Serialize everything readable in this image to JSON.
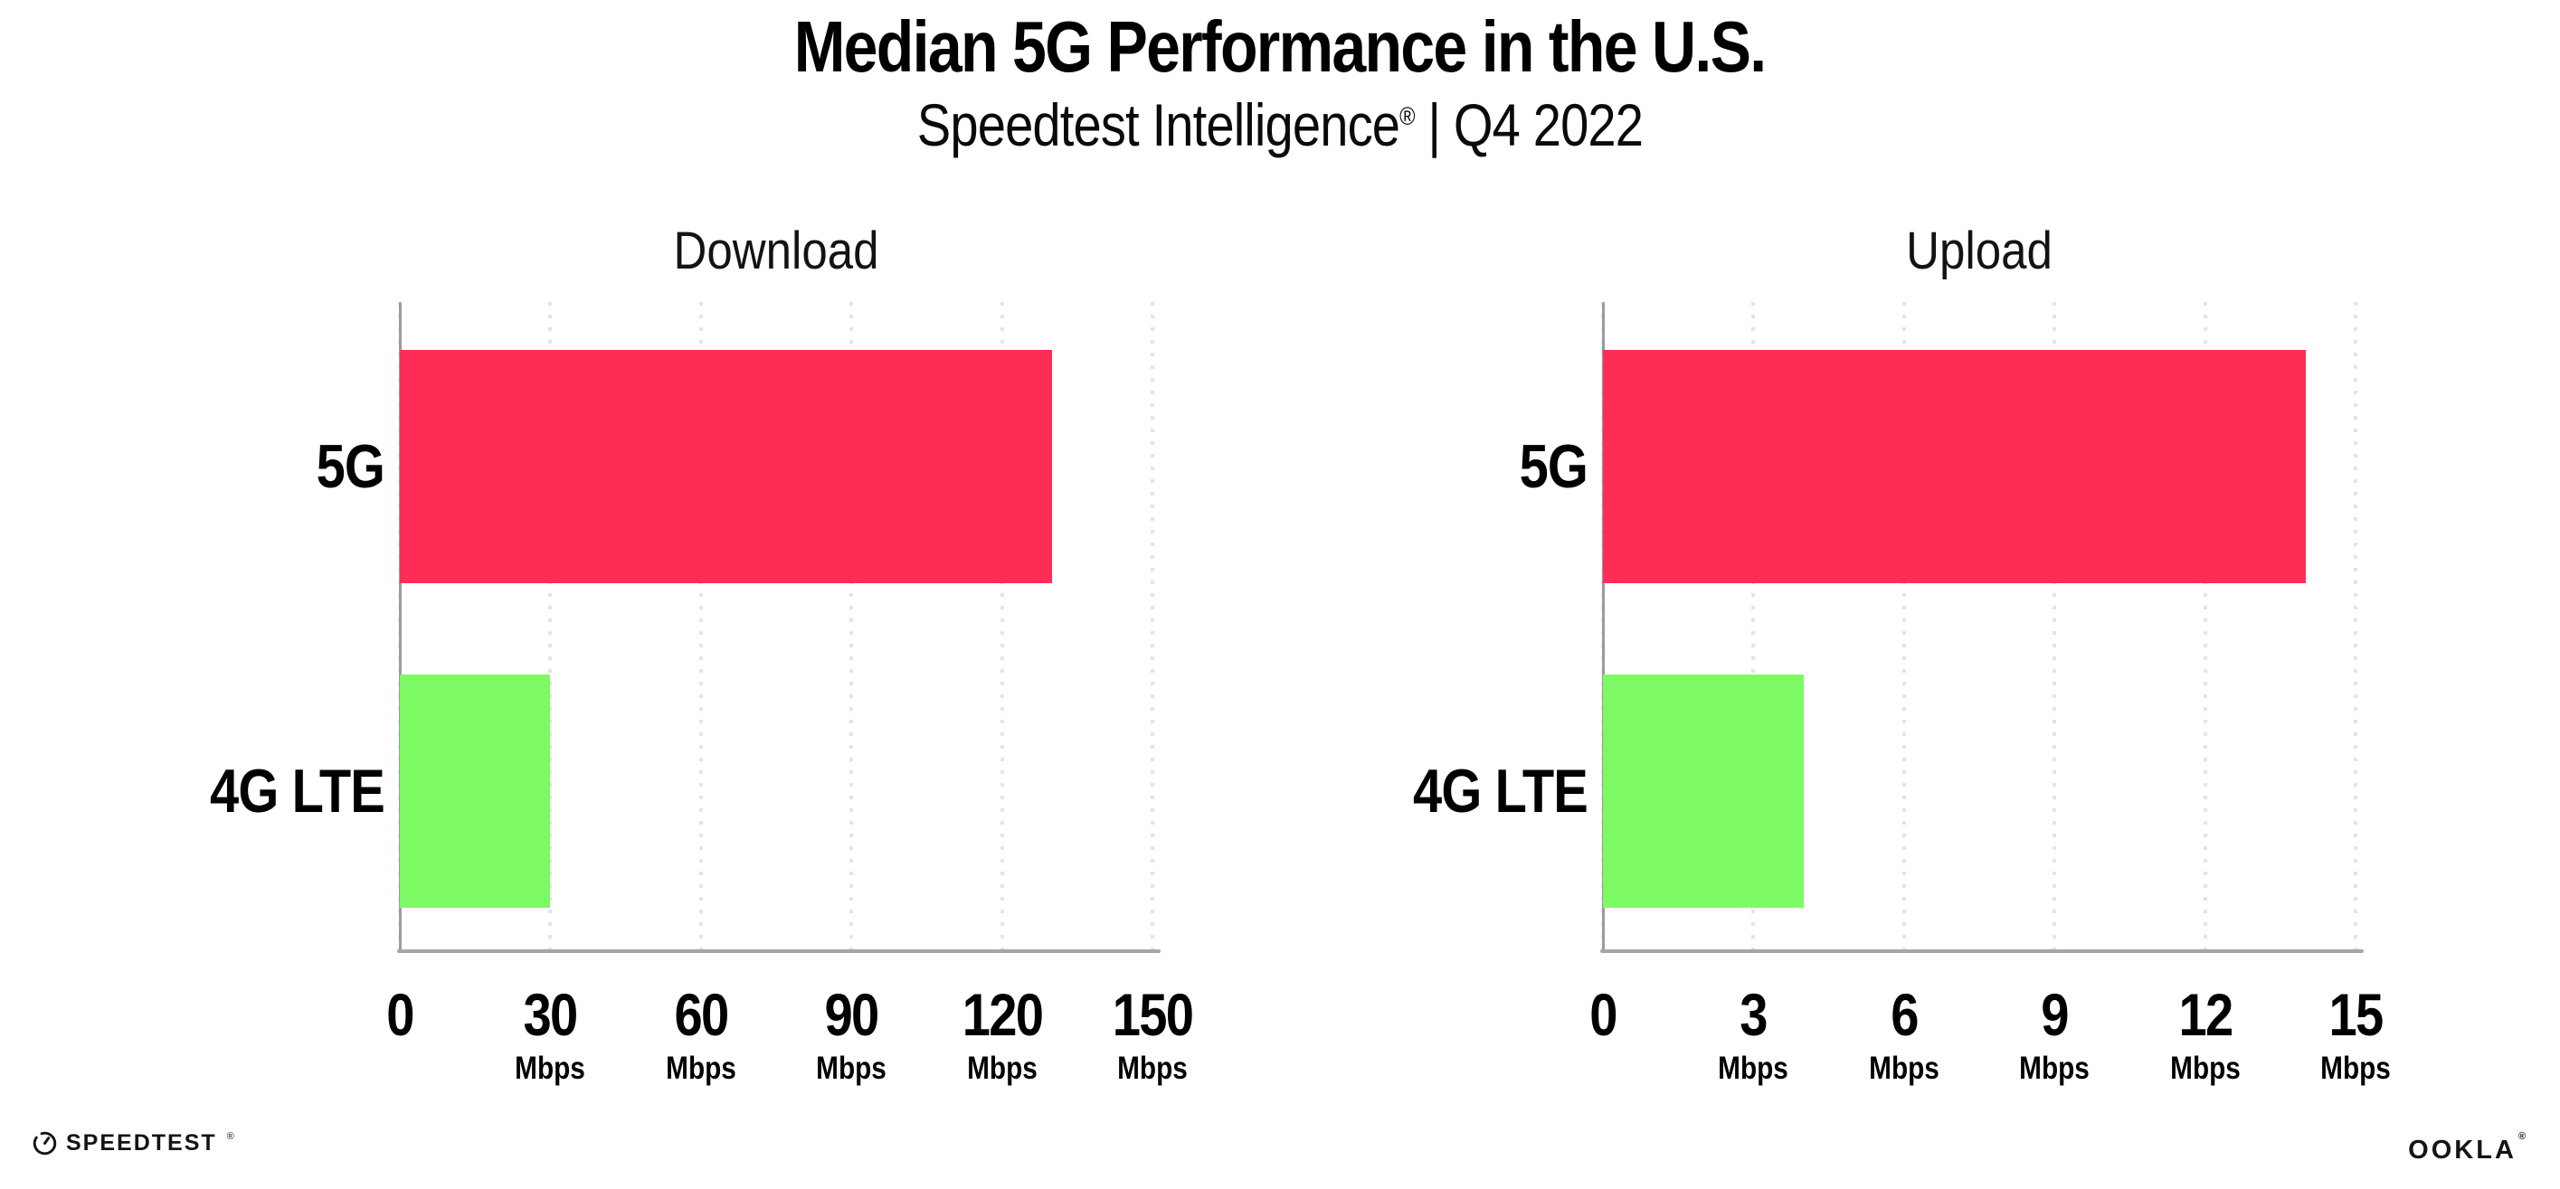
{
  "header": {
    "title": "Median 5G Performance in the U.S.",
    "subtitle_brand": "Speedtest Intelligence",
    "subtitle_reg": "®",
    "subtitle_rest": " | Q4 2022"
  },
  "chart_data": [
    {
      "type": "bar",
      "orientation": "horizontal",
      "title": "Download",
      "categories": [
        "5G",
        "4G LTE"
      ],
      "values": [
        130,
        30
      ],
      "unit": "Mbps",
      "xlabel": "",
      "ylabel": "",
      "xlim": [
        0,
        150
      ],
      "xticks": [
        0,
        30,
        60,
        90,
        120,
        150
      ],
      "bar_colors": [
        "#ff2d55",
        "#7dfa63"
      ],
      "grid": "vertical-dotted",
      "legend": "none"
    },
    {
      "type": "bar",
      "orientation": "horizontal",
      "title": "Upload",
      "categories": [
        "5G",
        "4G LTE"
      ],
      "values": [
        14,
        4
      ],
      "unit": "Mbps",
      "xlabel": "",
      "ylabel": "",
      "xlim": [
        0,
        15
      ],
      "xticks": [
        0,
        3,
        6,
        9,
        12,
        15
      ],
      "bar_colors": [
        "#ff2d55",
        "#7dfa63"
      ],
      "grid": "vertical-dotted",
      "legend": "none"
    }
  ],
  "footer": {
    "speedtest_label": "SPEEDTEST",
    "speedtest_trademark": "®",
    "ookla_label": "OOKLA",
    "ookla_trademark": "®"
  },
  "colors": {
    "bar_5g": "#ff2d55",
    "bar_4g_lte": "#7dfa63",
    "axis": "#9b9b9b",
    "grid_dot": "#e3e3ed",
    "text": "#000000"
  }
}
